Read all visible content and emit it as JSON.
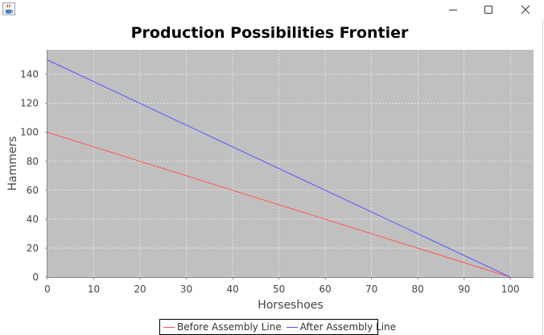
{
  "window": {
    "app_icon": "java-cup-icon",
    "controls": [
      "minimize-icon",
      "maximize-icon",
      "close-icon"
    ]
  },
  "chart_data": {
    "type": "line",
    "title": "Production Possibilities Frontier",
    "xlabel": "Horseshoes",
    "ylabel": "Hammers",
    "xlim": [
      0,
      105
    ],
    "ylim": [
      0,
      157
    ],
    "xticks": [
      0,
      10,
      20,
      30,
      40,
      50,
      60,
      70,
      80,
      90,
      100
    ],
    "yticks": [
      0,
      20,
      40,
      60,
      80,
      100,
      120,
      140
    ],
    "grid": true,
    "legend_position": "bottom",
    "background": "#c0c0c0",
    "series": [
      {
        "name": "Before Assembly Line",
        "color": "#ff5555",
        "x": [
          0,
          100
        ],
        "y": [
          100,
          0
        ]
      },
      {
        "name": "After Assembly Line",
        "color": "#5555ff",
        "x": [
          0,
          100
        ],
        "y": [
          150,
          0
        ]
      }
    ]
  }
}
